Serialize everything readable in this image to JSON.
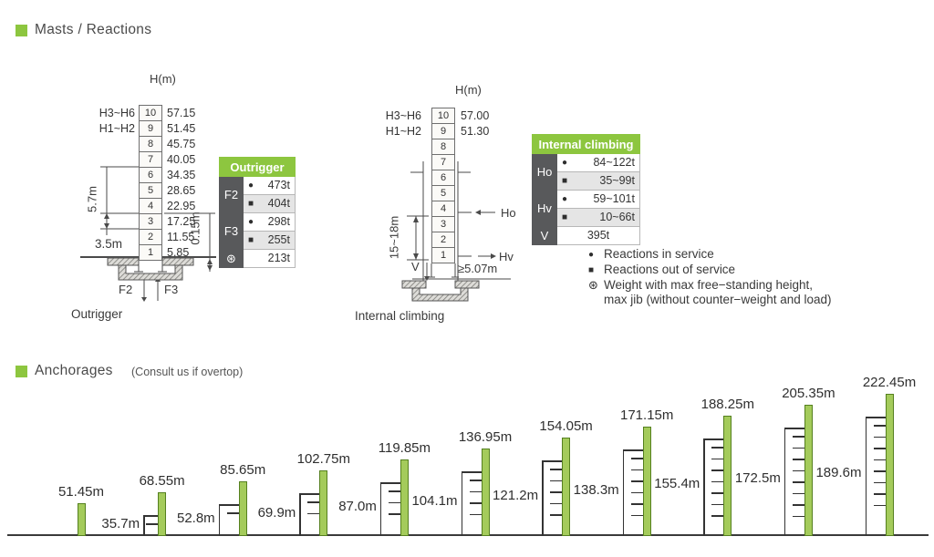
{
  "masts_section": {
    "title": "Masts / Reactions"
  },
  "anchorages_section": {
    "title": "Anchorages",
    "note": "(Consult us if overtop)"
  },
  "colors": {
    "green": "#8dc63f",
    "mast_green": "#a4cb5b",
    "dark_cell": "#58595b",
    "shaded_row": "#e5e5e5"
  },
  "outrigger_diagram": {
    "axis_label": "H(m)",
    "config_labels": [
      "H3~H6",
      "H1~H2"
    ],
    "rows": [
      {
        "no": "10",
        "h": "57.15"
      },
      {
        "no": "9",
        "h": "51.45"
      },
      {
        "no": "8",
        "h": "45.75"
      },
      {
        "no": "7",
        "h": "40.05"
      },
      {
        "no": "6",
        "h": "34.35"
      },
      {
        "no": "5",
        "h": "28.65"
      },
      {
        "no": "4",
        "h": "22.95"
      },
      {
        "no": "3",
        "h": "17.25"
      },
      {
        "no": "2",
        "h": "11.55"
      },
      {
        "no": "1",
        "h": "5.85"
      }
    ],
    "dim_section": "5.7m",
    "dim_base": "3.5m",
    "dim_offset": "0.15m",
    "force_left": "F2",
    "force_right": "F3",
    "caption": "Outrigger"
  },
  "outrigger_table": {
    "header": "Outrigger",
    "groups": [
      {
        "label": "F2",
        "rows": [
          {
            "marker": "●",
            "value": "473t"
          },
          {
            "marker": "■",
            "value": "404t"
          }
        ]
      },
      {
        "label": "F3",
        "rows": [
          {
            "marker": "●",
            "value": "298t"
          },
          {
            "marker": "■",
            "value": "255t"
          }
        ]
      },
      {
        "label": "⊛",
        "rows": [
          {
            "value": "213t"
          }
        ]
      }
    ]
  },
  "internal_diagram": {
    "axis_label": "H(m)",
    "config_labels": [
      "H3~H6",
      "H1~H2"
    ],
    "rows": [
      {
        "no": "10",
        "h": "57.00"
      },
      {
        "no": "9",
        "h": "51.30"
      },
      {
        "no": "8"
      },
      {
        "no": "7"
      },
      {
        "no": "6"
      },
      {
        "no": "5"
      },
      {
        "no": "4"
      },
      {
        "no": "3"
      },
      {
        "no": "2"
      },
      {
        "no": "1"
      }
    ],
    "dim_climb": "15~18m",
    "dim_base": "≥5.07m",
    "label_ho": "Ho",
    "label_hv": "Hv",
    "label_v": "V",
    "caption": "Internal climbing"
  },
  "internal_table": {
    "header": "Internal climbing",
    "groups": [
      {
        "label": "Ho",
        "rows": [
          {
            "marker": "●",
            "value": "84~122t"
          },
          {
            "marker": "■",
            "value": "35~99t"
          }
        ]
      },
      {
        "label": "Hv",
        "rows": [
          {
            "marker": "●",
            "value": "59~101t"
          },
          {
            "marker": "■",
            "value": "10~66t"
          }
        ]
      },
      {
        "label": "V",
        "rows": [
          {
            "value": "395t"
          }
        ]
      }
    ]
  },
  "legend": {
    "items": [
      {
        "marker": "●",
        "text": "Reactions in service"
      },
      {
        "marker": "■",
        "text": "Reactions out of service"
      },
      {
        "marker": "⊛",
        "text": "Weight with max free−standing height,",
        "text2": "max jib (without counter−weight and load)"
      }
    ]
  },
  "chart_data": {
    "type": "bar",
    "title": "Anchorages",
    "unit": "m",
    "groups": [
      {
        "height_m": 51.45,
        "height_label": "51.45m",
        "anchor_m": null,
        "anchor_label": null,
        "ticks": 0
      },
      {
        "height_m": 68.55,
        "height_label": "68.55m",
        "anchor_m": 35.7,
        "anchor_label": "35.7m",
        "ticks": 1
      },
      {
        "height_m": 85.65,
        "height_label": "85.65m",
        "anchor_m": 52.8,
        "anchor_label": "52.8m",
        "ticks": 1
      },
      {
        "height_m": 102.75,
        "height_label": "102.75m",
        "anchor_m": 69.9,
        "anchor_label": "69.9m",
        "ticks": 2
      },
      {
        "height_m": 119.85,
        "height_label": "119.85m",
        "anchor_m": 87.0,
        "anchor_label": "87.0m",
        "ticks": 3
      },
      {
        "height_m": 136.95,
        "height_label": "136.95m",
        "anchor_m": 104.1,
        "anchor_label": "104.1m",
        "ticks": 4
      },
      {
        "height_m": 154.05,
        "height_label": "154.05m",
        "anchor_m": 121.2,
        "anchor_label": "121.2m",
        "ticks": 5
      },
      {
        "height_m": 171.15,
        "height_label": "171.15m",
        "anchor_m": 138.3,
        "anchor_label": "138.3m",
        "ticks": 6
      },
      {
        "height_m": 188.25,
        "height_label": "188.25m",
        "anchor_m": 155.4,
        "anchor_label": "155.4m",
        "ticks": 7
      },
      {
        "height_m": 205.35,
        "height_label": "205.35m",
        "anchor_m": 172.5,
        "anchor_label": "172.5m",
        "ticks": 8
      },
      {
        "height_m": 222.45,
        "height_label": "222.45m",
        "anchor_m": 189.6,
        "anchor_label": "189.6m",
        "ticks": 8
      }
    ]
  }
}
